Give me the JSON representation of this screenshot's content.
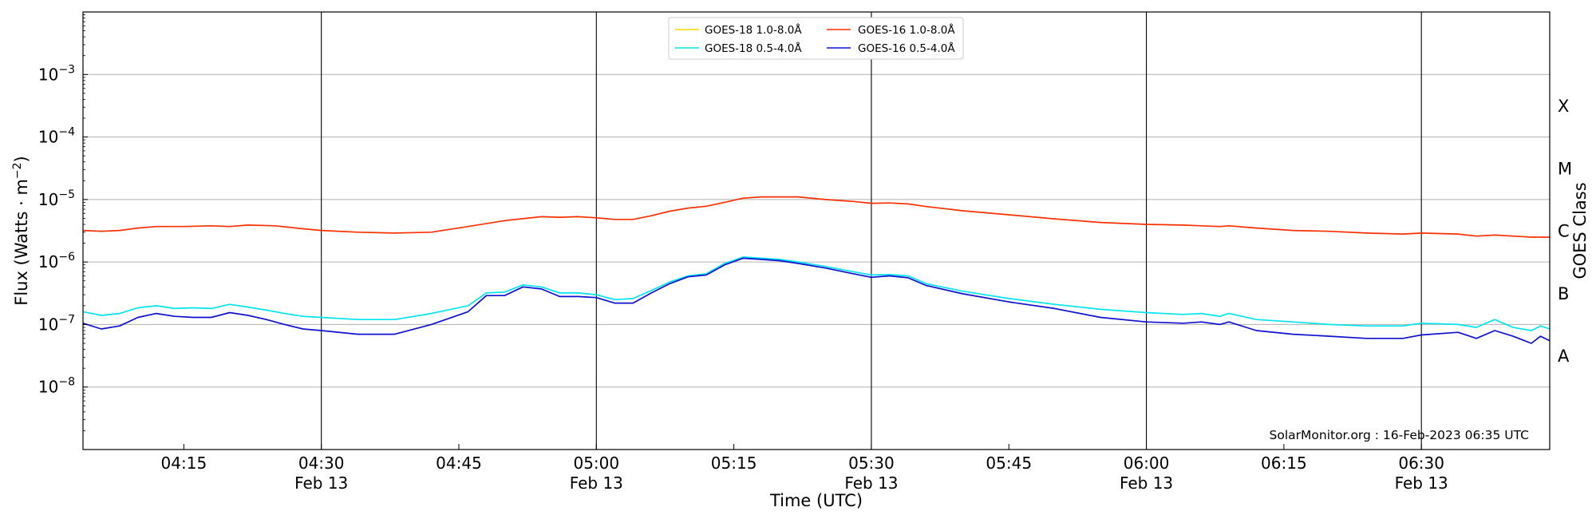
{
  "chart_data": {
    "type": "line",
    "xlabel": "Time (UTC)",
    "ylabel": "Flux (Watts · m",
    "ylabel_exponent": "−2",
    "ylabel_suffix": ")",
    "y2label": "GOES Class",
    "yscale": "log",
    "xlim": [
      "04:04",
      "06:44"
    ],
    "ylim": [
      1e-09,
      0.01
    ],
    "grid": "horizontal at decades; vertical lines at 30-minute marks",
    "legend_placement": "top-center",
    "watermark": "SolarMonitor.org : 16-Feb-2023 06:35 UTC",
    "x_ticks": [
      {
        "time": "04:15",
        "date": ""
      },
      {
        "time": "04:30",
        "date": "Feb 13"
      },
      {
        "time": "04:45",
        "date": ""
      },
      {
        "time": "05:00",
        "date": "Feb 13"
      },
      {
        "time": "05:15",
        "date": ""
      },
      {
        "time": "05:30",
        "date": "Feb 13"
      },
      {
        "time": "05:45",
        "date": ""
      },
      {
        "time": "06:00",
        "date": "Feb 13"
      },
      {
        "time": "06:15",
        "date": ""
      },
      {
        "time": "06:30",
        "date": "Feb 13"
      }
    ],
    "y_ticks": [
      {
        "value": 0.001,
        "base": "10",
        "exp": "−3"
      },
      {
        "value": 0.0001,
        "base": "10",
        "exp": "−4"
      },
      {
        "value": 1e-05,
        "base": "10",
        "exp": "−5"
      },
      {
        "value": 1e-06,
        "base": "10",
        "exp": "−6"
      },
      {
        "value": 1e-07,
        "base": "10",
        "exp": "−7"
      },
      {
        "value": 1e-08,
        "base": "10",
        "exp": "−8"
      }
    ],
    "goes_classes": [
      {
        "label": "X",
        "value": 0.00032
      },
      {
        "label": "M",
        "value": 3.2e-05
      },
      {
        "label": "C",
        "value": 3.2e-06
      },
      {
        "label": "B",
        "value": 3.2e-07
      },
      {
        "label": "A",
        "value": 3.2e-08
      }
    ],
    "series": [
      {
        "name": "GOES-18 1.0-8.0Å",
        "color": "#ffd700",
        "x": [],
        "y": []
      },
      {
        "name": "GOES-18 0.5-4.0Å",
        "color": "#00e5ee",
        "x": [
          "04:04",
          "04:06",
          "04:08",
          "04:10",
          "04:12",
          "04:14",
          "04:16",
          "04:18",
          "04:20",
          "04:22",
          "04:24",
          "04:26",
          "04:28",
          "04:30",
          "04:34",
          "04:38",
          "04:42",
          "04:46",
          "04:48",
          "04:50",
          "04:52",
          "04:54",
          "04:56",
          "04:58",
          "05:00",
          "05:02",
          "05:04",
          "05:06",
          "05:08",
          "05:10",
          "05:12",
          "05:14",
          "05:16",
          "05:18",
          "05:20",
          "05:22",
          "05:25",
          "05:28",
          "05:30",
          "05:32",
          "05:34",
          "05:36",
          "05:40",
          "05:45",
          "05:50",
          "05:55",
          "06:00",
          "06:04",
          "06:06",
          "06:08",
          "06:09",
          "06:12",
          "06:16",
          "06:20",
          "06:24",
          "06:28",
          "06:30",
          "06:34",
          "06:36",
          "06:38",
          "06:40",
          "06:42",
          "06:43",
          "06:44"
        ],
        "y": [
          1.6e-07,
          1.4e-07,
          1.5e-07,
          1.85e-07,
          2e-07,
          1.8e-07,
          1.85e-07,
          1.8e-07,
          2.1e-07,
          1.9e-07,
          1.7e-07,
          1.5e-07,
          1.35e-07,
          1.3e-07,
          1.2e-07,
          1.2e-07,
          1.5e-07,
          2e-07,
          3.2e-07,
          3.3e-07,
          4.3e-07,
          4e-07,
          3.2e-07,
          3.2e-07,
          3e-07,
          2.5e-07,
          2.6e-07,
          3.5e-07,
          4.8e-07,
          6e-07,
          6.5e-07,
          9.5e-07,
          1.2e-06,
          1.15e-06,
          1.1e-06,
          1e-06,
          8.5e-07,
          7e-07,
          6.2e-07,
          6.3e-07,
          6e-07,
          4.5e-07,
          3.4e-07,
          2.6e-07,
          2.1e-07,
          1.75e-07,
          1.55e-07,
          1.45e-07,
          1.5e-07,
          1.35e-07,
          1.5e-07,
          1.2e-07,
          1.1e-07,
          1e-07,
          9.5e-08,
          9.5e-08,
          1.05e-07,
          1e-07,
          9e-08,
          1.2e-07,
          9e-08,
          8e-08,
          9.5e-08,
          8.5e-08
        ]
      },
      {
        "name": "GOES-16 1.0-8.0Å",
        "color": "#ff3000",
        "x": [
          "04:04",
          "04:06",
          "04:08",
          "04:10",
          "04:12",
          "04:15",
          "04:18",
          "04:20",
          "04:22",
          "04:25",
          "04:28",
          "04:30",
          "04:34",
          "04:38",
          "04:42",
          "04:46",
          "04:50",
          "04:54",
          "04:56",
          "04:58",
          "05:00",
          "05:02",
          "05:04",
          "05:06",
          "05:08",
          "05:10",
          "05:12",
          "05:14",
          "05:16",
          "05:18",
          "05:20",
          "05:22",
          "05:25",
          "05:28",
          "05:30",
          "05:32",
          "05:34",
          "05:36",
          "05:40",
          "05:45",
          "05:50",
          "05:55",
          "06:00",
          "06:04",
          "06:06",
          "06:08",
          "06:09",
          "06:12",
          "06:16",
          "06:20",
          "06:24",
          "06:28",
          "06:30",
          "06:34",
          "06:36",
          "06:38",
          "06:40",
          "06:42",
          "06:44"
        ],
        "y": [
          3.2e-06,
          3.1e-06,
          3.2e-06,
          3.5e-06,
          3.7e-06,
          3.7e-06,
          3.8e-06,
          3.7e-06,
          3.9e-06,
          3.8e-06,
          3.4e-06,
          3.2e-06,
          3e-06,
          2.9e-06,
          3e-06,
          3.7e-06,
          4.6e-06,
          5.3e-06,
          5.2e-06,
          5.3e-06,
          5.1e-06,
          4.8e-06,
          4.8e-06,
          5.5e-06,
          6.5e-06,
          7.3e-06,
          7.8e-06,
          9e-06,
          1.05e-05,
          1.1e-05,
          1.1e-05,
          1.1e-05,
          1e-05,
          9.3e-06,
          8.7e-06,
          8.8e-06,
          8.5e-06,
          7.7e-06,
          6.6e-06,
          5.7e-06,
          4.9e-06,
          4.3e-06,
          4e-06,
          3.9e-06,
          3.8e-06,
          3.7e-06,
          3.8e-06,
          3.5e-06,
          3.2e-06,
          3.1e-06,
          2.9e-06,
          2.8e-06,
          2.9e-06,
          2.8e-06,
          2.6e-06,
          2.7e-06,
          2.6e-06,
          2.5e-06,
          2.5e-06
        ]
      },
      {
        "name": "GOES-16 0.5-4.0Å",
        "color": "#1010d0",
        "x": [
          "04:04",
          "04:06",
          "04:08",
          "04:10",
          "04:12",
          "04:14",
          "04:16",
          "04:18",
          "04:20",
          "04:22",
          "04:24",
          "04:26",
          "04:28",
          "04:30",
          "04:34",
          "04:38",
          "04:42",
          "04:46",
          "04:48",
          "04:50",
          "04:52",
          "04:54",
          "04:56",
          "04:58",
          "05:00",
          "05:02",
          "05:04",
          "05:06",
          "05:08",
          "05:10",
          "05:12",
          "05:14",
          "05:16",
          "05:18",
          "05:20",
          "05:22",
          "05:25",
          "05:28",
          "05:30",
          "05:32",
          "05:34",
          "05:36",
          "05:40",
          "05:45",
          "05:50",
          "05:55",
          "06:00",
          "06:04",
          "06:06",
          "06:08",
          "06:09",
          "06:12",
          "06:16",
          "06:20",
          "06:24",
          "06:28",
          "06:30",
          "06:34",
          "06:36",
          "06:38",
          "06:40",
          "06:42",
          "06:43",
          "06:44"
        ],
        "y": [
          1.05e-07,
          8.5e-08,
          9.5e-08,
          1.3e-07,
          1.5e-07,
          1.35e-07,
          1.3e-07,
          1.3e-07,
          1.55e-07,
          1.4e-07,
          1.2e-07,
          1e-07,
          8.5e-08,
          8e-08,
          7e-08,
          7e-08,
          1e-07,
          1.6e-07,
          2.9e-07,
          2.9e-07,
          4e-07,
          3.7e-07,
          2.8e-07,
          2.8e-07,
          2.7e-07,
          2.2e-07,
          2.2e-07,
          3.2e-07,
          4.5e-07,
          5.8e-07,
          6.2e-07,
          9e-07,
          1.15e-06,
          1.1e-06,
          1.05e-06,
          9.5e-07,
          8e-07,
          6.5e-07,
          5.7e-07,
          6e-07,
          5.6e-07,
          4.2e-07,
          3.1e-07,
          2.3e-07,
          1.8e-07,
          1.3e-07,
          1.1e-07,
          1.05e-07,
          1.1e-07,
          1e-07,
          1.1e-07,
          8e-08,
          7e-08,
          6.5e-08,
          6e-08,
          6e-08,
          6.8e-08,
          7.5e-08,
          6e-08,
          8e-08,
          6.5e-08,
          5e-08,
          6.5e-08,
          5.5e-08
        ]
      }
    ]
  }
}
